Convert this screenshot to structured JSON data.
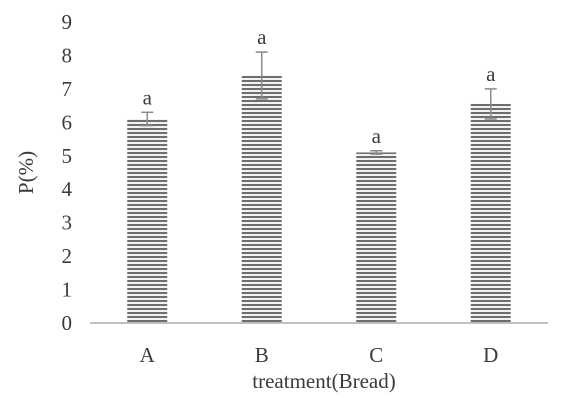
{
  "chart_data": {
    "type": "bar",
    "title": "",
    "xlabel": "treatment(Bread)",
    "ylabel": "P(%)",
    "categories": [
      "A",
      "B",
      "C",
      "D"
    ],
    "values": [
      6.1,
      7.4,
      5.1,
      6.55
    ],
    "errors": [
      0.2,
      0.7,
      0.05,
      0.45
    ],
    "labels": [
      "a",
      "a",
      "a",
      "a"
    ],
    "ylim": [
      0,
      9
    ],
    "yticks": [
      0,
      1,
      2,
      3,
      4,
      5,
      6,
      7,
      8,
      9
    ],
    "grid": false,
    "legend": "none",
    "fill_style": "horizontal-stripes",
    "colors": {
      "stripe_dark": "#6e6e6e",
      "stripe_light": "#f2f2f2",
      "axis": "#bfbfbf",
      "error_bar": "#8a8a8a",
      "text": "#3a3a3a"
    }
  }
}
